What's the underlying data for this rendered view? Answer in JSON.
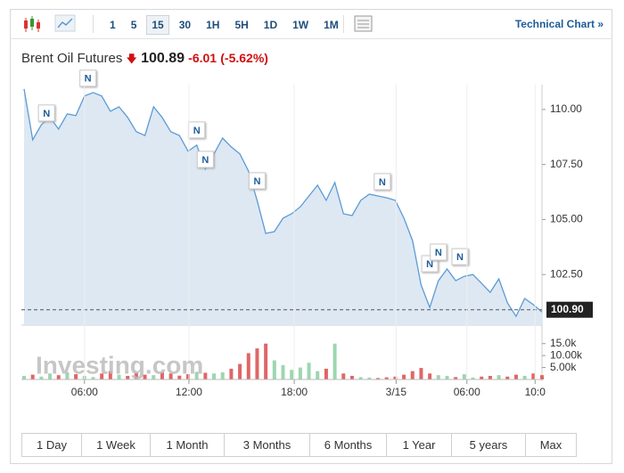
{
  "toolbar": {
    "intervals": [
      "1",
      "5",
      "15",
      "30",
      "1H",
      "5H",
      "1D",
      "1W",
      "1M"
    ],
    "technical_chart": "Technical Chart »"
  },
  "header": {
    "name": "Brent Oil Futures",
    "price": "100.89",
    "change": "-6.01",
    "change_pct": "(-5.62%)"
  },
  "watermark": "Investing.com",
  "chart_data": [
    {
      "type": "area",
      "color": "#5b9bd5",
      "fill": "#dde8f3",
      "xlim": [
        0,
        60
      ],
      "ylim": [
        100.2,
        111.13
      ],
      "yticks": [
        {
          "value": 110,
          "label": "110.00"
        },
        {
          "value": 107.5,
          "label": "107.50"
        },
        {
          "value": 105,
          "label": "105.00"
        },
        {
          "value": 102.5,
          "label": "102.50"
        }
      ],
      "values": [
        110.93,
        108.62,
        109.31,
        109.64,
        109.11,
        109.8,
        109.72,
        110.61,
        110.77,
        110.61,
        109.92,
        110.12,
        109.64,
        108.99,
        108.82,
        110.12,
        109.64,
        108.99,
        108.82,
        108.1,
        108.38,
        107.29,
        107.98,
        108.7,
        108.3,
        107.98,
        107.2,
        105.87,
        104.37,
        104.45,
        105.06,
        105.26,
        105.58,
        106.07,
        106.56,
        105.87,
        106.68,
        105.26,
        105.18,
        105.87,
        106.15,
        106.07,
        105.99,
        105.87,
        105.06,
        104.04,
        102.02,
        101.0,
        102.22,
        102.75,
        102.22,
        102.42,
        102.5,
        102.1,
        101.69,
        102.3,
        101.21,
        100.6,
        101.41,
        101.13,
        100.8
      ],
      "last": {
        "value": 100.9,
        "label": "100.90"
      },
      "annotations": [
        {
          "text": "N",
          "x": 2.6,
          "y": 109.84
        },
        {
          "text": "N",
          "x": 7.4,
          "y": 111.42
        },
        {
          "text": "N",
          "x": 20,
          "y": 109.07
        },
        {
          "text": "N",
          "x": 21,
          "y": 107.73
        },
        {
          "text": "N",
          "x": 27,
          "y": 106.76
        },
        {
          "text": "N",
          "x": 41.5,
          "y": 106.72
        },
        {
          "text": "N",
          "x": 47,
          "y": 102.99
        },
        {
          "text": "N",
          "x": 48,
          "y": 103.52
        },
        {
          "text": "N",
          "x": 50.5,
          "y": 103.31
        }
      ]
    },
    {
      "type": "volume",
      "up_color": "#9dd6b0",
      "down_color": "#e06666",
      "xlim": [
        0,
        60
      ],
      "ylim": [
        0,
        19000
      ],
      "yticks": [
        {
          "value": 15000,
          "label": "15.0k"
        },
        {
          "value": 10000,
          "label": "10.00k"
        },
        {
          "value": 5000,
          "label": "5.00k"
        }
      ],
      "xticks": [
        {
          "value": 7,
          "label": "06:00"
        },
        {
          "value": 19.1,
          "label": "12:00"
        },
        {
          "value": 31.3,
          "label": "18:00"
        },
        {
          "value": 43.1,
          "label": "3/15"
        },
        {
          "value": 51.3,
          "label": "06:00"
        },
        {
          "value": 59.2,
          "label": "10:0"
        }
      ],
      "values": [
        1500,
        2000,
        1200,
        2500,
        1800,
        3000,
        2200,
        1500,
        1000,
        2500,
        3500,
        2000,
        1500,
        2800,
        2000,
        1800,
        3000,
        2500,
        1600,
        2200,
        3200,
        2800,
        2500,
        3000,
        4500,
        6500,
        11000,
        13000,
        15000,
        8000,
        6000,
        4000,
        5000,
        7000,
        3500,
        4500,
        15000,
        2500,
        1500,
        1000,
        800,
        600,
        900,
        1200,
        2000,
        3500,
        4800,
        2500,
        1800,
        1500,
        1000,
        2200,
        800,
        1200,
        1500,
        1800,
        1200,
        2000,
        1500,
        2500,
        1800
      ]
    }
  ],
  "ranges": [
    "1 Day",
    "1 Week",
    "1 Month",
    "3 Months",
    "6 Months",
    "1 Year",
    "5 years",
    "Max"
  ]
}
